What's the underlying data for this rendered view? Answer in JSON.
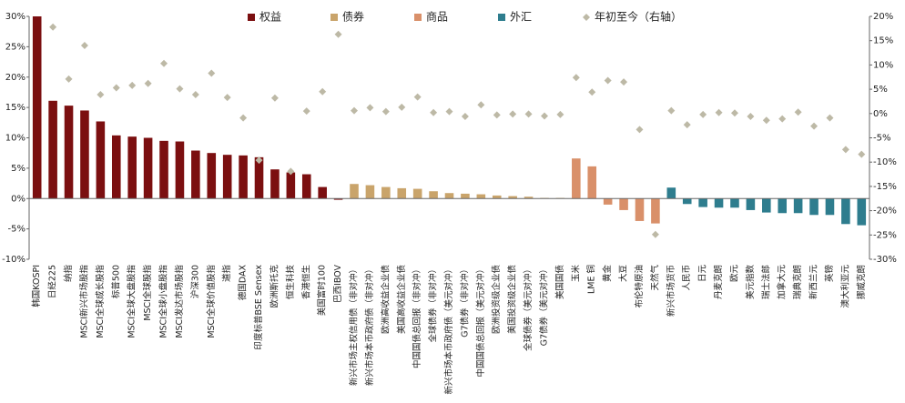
{
  "chart_data": {
    "type": "bar",
    "categories": [
      "韩国KOSPI",
      "日经225",
      "纳指",
      "MSCI新兴市场股指",
      "MSCI全球成长股指",
      "标普500",
      "MSCI全球大盘股指",
      "MSCI全球股指",
      "MSCI全球小盘股指",
      "MSCI发达市场股指",
      "沪深300",
      "MSCI全球价值股指",
      "道指",
      "德国DAX",
      "印度标普BSE Sensex",
      "欧洲斯托克",
      "恒生科技",
      "香港恒生",
      "美国富时100",
      "巴西IBOV",
      "新兴市场主权信用债（非对冲）",
      "新兴市场本币政府债（非对冲）",
      "欧洲高收益企业债",
      "美国高收益企业债",
      "中国国债总回报（非对冲）",
      "全球债券（非对冲）",
      "新兴市场本币政府债（美元对冲）",
      "G7债券（非对冲）",
      "中国国债总回报（美元对冲）",
      "欧洲投资级企业债",
      "美国投资级企业债",
      "全球债券（美元对冲）",
      "G7债券（美元对冲）",
      "美国国债",
      "玉米",
      "LME 铜",
      "黄金",
      "大豆",
      "布伦特原油",
      "天然气",
      "新兴市场货币",
      "人民币",
      "日元",
      "丹麦克朗",
      "欧元",
      "美元指数",
      "瑞士法郎",
      "加拿大元",
      "瑞典克朗",
      "新西兰元",
      "英镑",
      "澳大利亚元",
      "挪威克朗"
    ],
    "series": [
      {
        "name": "权益",
        "color": "#7b0f10",
        "values": [
          30,
          16.1,
          15.3,
          14.5,
          12.7,
          10.4,
          10.2,
          10.0,
          9.5,
          9.4,
          7.9,
          7.5,
          7.2,
          7.1,
          6.8,
          4.8,
          4.3,
          4.0,
          1.9,
          -0.2,
          null,
          null,
          null,
          null,
          null,
          null,
          null,
          null,
          null,
          null,
          null,
          null,
          null,
          null,
          null,
          null,
          null,
          null,
          null,
          null,
          null,
          null,
          null,
          null,
          null,
          null,
          null,
          null,
          null,
          null,
          null,
          null,
          null
        ]
      },
      {
        "name": "债券",
        "color": "#c9a46b",
        "values": [
          null,
          null,
          null,
          null,
          null,
          null,
          null,
          null,
          null,
          null,
          null,
          null,
          null,
          null,
          null,
          null,
          null,
          null,
          null,
          null,
          2.4,
          2.2,
          1.9,
          1.7,
          1.6,
          1.2,
          0.9,
          0.8,
          0.7,
          0.5,
          0.4,
          0.3,
          0.1,
          0.1,
          null,
          null,
          null,
          null,
          null,
          null,
          null,
          null,
          null,
          null,
          null,
          null,
          null,
          null,
          null,
          null,
          null,
          null,
          null
        ]
      },
      {
        "name": "商品",
        "color": "#d9906a",
        "values": [
          null,
          null,
          null,
          null,
          null,
          null,
          null,
          null,
          null,
          null,
          null,
          null,
          null,
          null,
          null,
          null,
          null,
          null,
          null,
          null,
          null,
          null,
          null,
          null,
          null,
          null,
          null,
          null,
          null,
          null,
          null,
          null,
          null,
          null,
          6.6,
          5.3,
          -1.0,
          -1.9,
          -3.7,
          -4.1,
          null,
          null,
          null,
          null,
          null,
          null,
          null,
          null,
          null,
          null,
          null,
          null,
          null
        ]
      },
      {
        "name": "外汇",
        "color": "#2e7d8e",
        "values": [
          null,
          null,
          null,
          null,
          null,
          null,
          null,
          null,
          null,
          null,
          null,
          null,
          null,
          null,
          null,
          null,
          null,
          null,
          null,
          null,
          null,
          null,
          null,
          null,
          null,
          null,
          null,
          null,
          null,
          null,
          null,
          null,
          null,
          null,
          null,
          null,
          null,
          null,
          null,
          null,
          1.8,
          -0.9,
          -1.4,
          -1.5,
          -1.5,
          -1.9,
          -2.3,
          -2.4,
          -2.4,
          -2.7,
          -2.7,
          -4.2,
          -4.4
        ]
      },
      {
        "name": "年初至今（右轴）",
        "color": "#bdb9a6",
        "axis": "y2",
        "values": [
          null,
          17.8,
          7.1,
          14.0,
          3.9,
          5.3,
          5.8,
          6.2,
          10.3,
          5.1,
          3.9,
          8.3,
          3.3,
          -0.9,
          -9.6,
          3.2,
          -11.9,
          0.5,
          4.5,
          16.3,
          0.6,
          1.2,
          0.4,
          1.3,
          3.4,
          0.2,
          0.4,
          -0.6,
          1.8,
          -0.3,
          -0.1,
          -0.1,
          -0.5,
          -0.2,
          7.4,
          4.4,
          6.8,
          6.5,
          -3.3,
          -24.9,
          0.6,
          -2.3,
          -0.2,
          0.2,
          0.1,
          -0.6,
          -1.4,
          -1.1,
          0.3,
          -2.6,
          -0.9,
          -7.4,
          -8.4
        ]
      }
    ],
    "ylim": [
      -10,
      30
    ],
    "yticks": [
      {
        "value": -10,
        "label": "-10%"
      },
      {
        "value": -5,
        "label": "-5%"
      },
      {
        "value": 0,
        "label": "0%"
      },
      {
        "value": 5,
        "label": "5%"
      },
      {
        "value": 10,
        "label": "10%"
      },
      {
        "value": 15,
        "label": "15%"
      },
      {
        "value": 20,
        "label": "20%"
      },
      {
        "value": 25,
        "label": "25%"
      },
      {
        "value": 30,
        "label": "30%"
      }
    ],
    "y2lim": [
      -30,
      20
    ],
    "y2ticks": [
      {
        "value": -30,
        "label": "-30%"
      },
      {
        "value": -25,
        "label": "-25%"
      },
      {
        "value": -20,
        "label": "-20%"
      },
      {
        "value": -15,
        "label": "-15%"
      },
      {
        "value": -10,
        "label": "-10%"
      },
      {
        "value": -5,
        "label": "-5%"
      },
      {
        "value": 0,
        "label": "0%"
      },
      {
        "value": 5,
        "label": "5%"
      },
      {
        "value": 10,
        "label": "10%"
      },
      {
        "value": 15,
        "label": "15%"
      },
      {
        "value": 20,
        "label": "20%"
      }
    ],
    "grid": false
  }
}
